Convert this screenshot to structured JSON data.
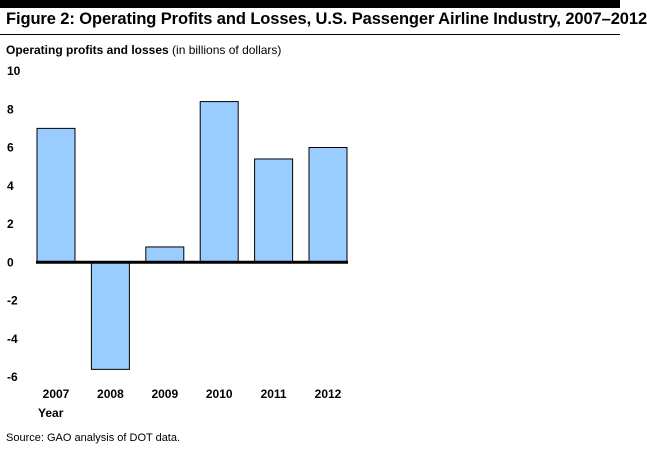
{
  "figure": {
    "title": "Figure 2: Operating Profits and Losses, U.S. Passenger Airline Industry, 2007–2012",
    "source": "Source: GAO analysis of DOT data."
  },
  "chart_data": {
    "type": "bar",
    "title": "Figure 2: Operating Profits and Losses, U.S. Passenger Airline Industry, 2007–2012",
    "ylabel_bold": "Operating profits and losses",
    "ylabel_note": "(in billions of dollars)",
    "xlabel": "Year",
    "categories": [
      "2007",
      "2008",
      "2009",
      "2010",
      "2011",
      "2012"
    ],
    "values": [
      7.0,
      -5.6,
      0.8,
      8.4,
      5.4,
      6.0
    ],
    "ylim": [
      -6,
      10
    ],
    "yticks": [
      10,
      8,
      6,
      4,
      2,
      0,
      -2,
      -4,
      -6
    ],
    "grid": false,
    "legend": "none",
    "colors": {
      "bar_fill": "#99ccff",
      "bar_stroke": "#000000",
      "baseline": "#000000"
    }
  }
}
